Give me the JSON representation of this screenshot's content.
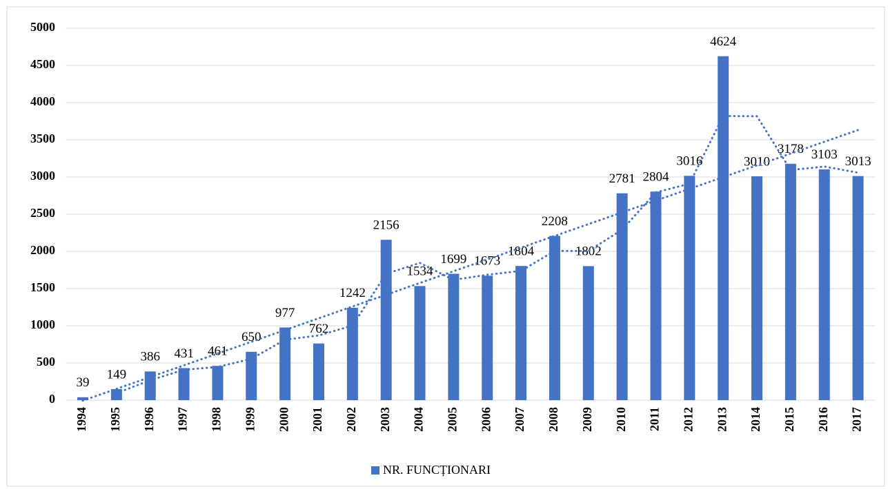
{
  "chart_data": {
    "type": "bar",
    "categories": [
      "1994",
      "1995",
      "1996",
      "1997",
      "1998",
      "1999",
      "2000",
      "2001",
      "2002",
      "2003",
      "2004",
      "2005",
      "2006",
      "2007",
      "2008",
      "2009",
      "2010",
      "2011",
      "2012",
      "2013",
      "2014",
      "2015",
      "2016",
      "2017"
    ],
    "series": [
      {
        "name": "NR. FUNCȚIONARI",
        "color": "#4472c4",
        "values": [
          39,
          149,
          386,
          431,
          461,
          650,
          977,
          762,
          1242,
          2156,
          1534,
          1699,
          1673,
          1804,
          2208,
          1802,
          2781,
          2804,
          3016,
          4624,
          3010,
          3178,
          3103,
          3013
        ]
      }
    ],
    "ylim": [
      0,
      5000
    ],
    "yticks": [
      0,
      500,
      1000,
      1500,
      2000,
      2500,
      3000,
      3500,
      4000,
      4500,
      5000
    ],
    "grid": true,
    "legend": "bottom",
    "moving_average_period": 2,
    "linear_trend": true
  }
}
